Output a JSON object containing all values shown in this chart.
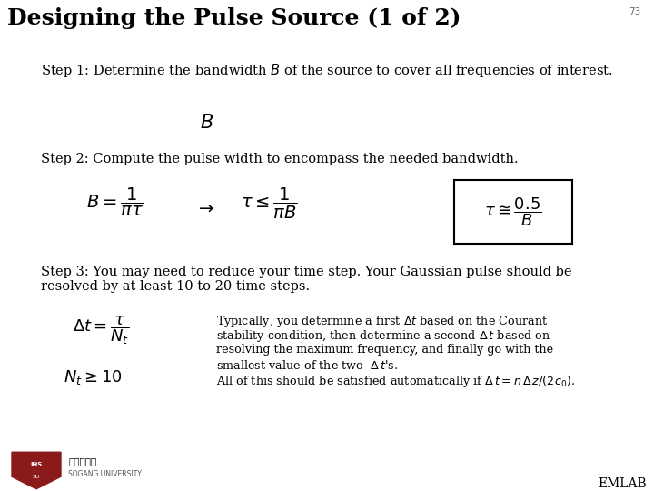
{
  "title": "Designing the Pulse Source (1 of 2)",
  "page_number": "73",
  "background_color": "#ffffff",
  "title_fontsize": 18,
  "body_fontsize": 10.5,
  "step1_text": "Step 1: Determine the bandwidth $B$ of the source to cover all frequencies of interest.",
  "step1_formula": "$B$",
  "step2_text": "Step 2: Compute the pulse width to encompass the needed bandwidth.",
  "step2_formula_left": "$B = \\dfrac{1}{\\pi\\tau}$",
  "step2_arrow": "$\\rightarrow$",
  "step2_formula_mid": "$\\tau \\leq \\dfrac{1}{\\pi B}$",
  "step2_formula_box": "$\\tau \\cong \\dfrac{0.5}{B}$",
  "step3_text1": "Step 3: You may need to reduce your time step. Your Gaussian pulse should be",
  "step3_text2": "resolved by at least 10 to 20 time steps.",
  "step3_formula1": "$\\Delta t = \\dfrac{\\tau}{N_t}$",
  "step3_formula2": "$N_t \\geq 10$",
  "step3_right_text1": "Typically, you determine a first $\\Delta t$ based on the Courant",
  "step3_right_text2": "stability condition, then determine a second $\\Delta\\,t$ based on",
  "step3_right_text3": "resolving the maximum frequency, and finally go with the",
  "step3_right_text4": "smallest value of the two  $\\Delta\\,t$'s.",
  "step3_right_text5": "All of this should be satisfied automatically if $\\Delta\\,t = n\\,\\Delta\\,z/(2c_0)$.",
  "emlab_text": "EMLAB"
}
